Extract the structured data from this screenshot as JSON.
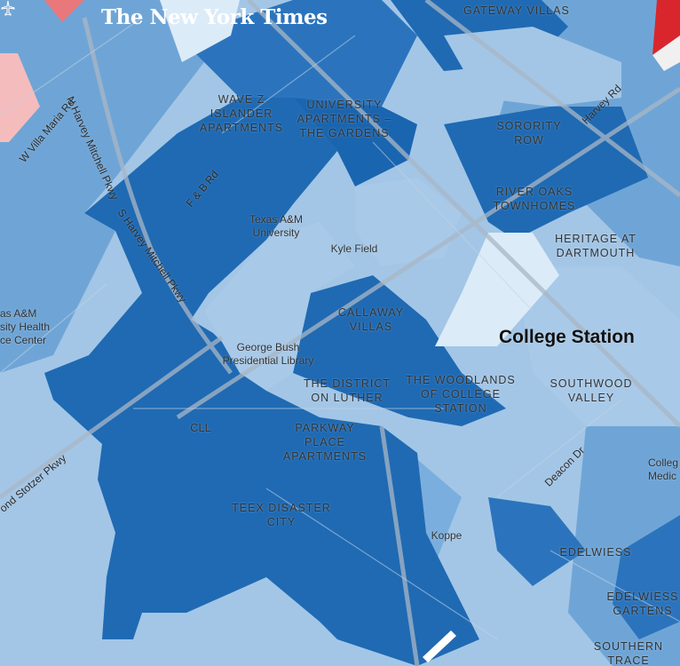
{
  "logo": "The New York Times",
  "city": "College Station",
  "airport": "CLL",
  "neighborhoods": [
    "GATEWAY VILLAS",
    "WAVE Z ISLANDER APARTMENTS",
    "UNIVERSITY APARTMENTS – THE GARDENS",
    "SORORITY ROW",
    "RIVER OAKS TOWNHOMES",
    "HERITAGE AT DARTMOUTH",
    "CALLAWAY VILLAS",
    "THE DISTRICT ON LUTHER",
    "THE WOODLANDS OF COLLEGE STATION",
    "SOUTHWOOD VALLEY",
    "PARKWAY PLACE APARTMENTS",
    "TEEX DISASTER CITY",
    "EDELWIESS",
    "EDELWIESS GARTENS",
    "SOUTHERN TRACE"
  ],
  "places": [
    "Texas A&M University",
    "Kyle Field",
    "George Bush Presidential Library",
    "Koppe",
    "as A&M sity Health ce Center",
    "Colleg Medic"
  ],
  "roads": [
    "N Harvey Mitchell Pkwy",
    "W Villa Maria Rd",
    "F & B Rd",
    "S Harvey Mitchell Pkwy",
    "Harvey Rd",
    "Deacon Dr",
    "ond Stotzer Pkwy"
  ],
  "colors": {
    "very_dark_blue": "#1a65b0",
    "dark_blue": "#2b74bd",
    "medium_blue": "#6fa5d6",
    "light_blue": "#a8c9e8",
    "very_light_blue": "#dcebf8",
    "light_red": "#f5bcbd",
    "medium_red": "#e8787c",
    "dark_red": "#d9262c"
  }
}
